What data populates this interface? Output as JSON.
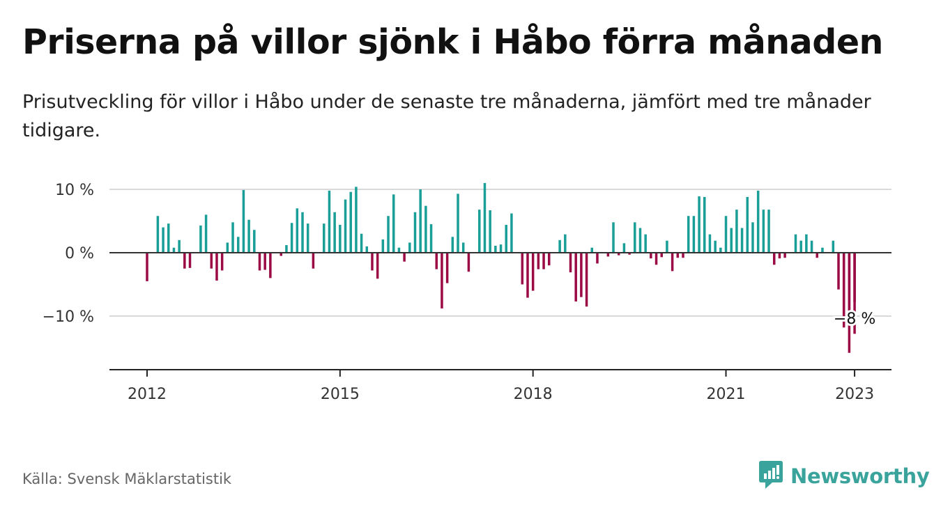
{
  "title": "Priserna på villor sjönk i Håbo förra månaden",
  "subtitle": "Prisutveckling för villor i Håbo under de senaste tre månaderna, jämfört med tre månader tidigare.",
  "source": "Källa: Svensk Mäklarstatistik",
  "brand": {
    "name": "Newsworthy",
    "icon": "newsworthy-logo-icon",
    "color": "#3aa39b"
  },
  "chart_data": {
    "type": "bar",
    "title": "Priserna på villor sjönk i Håbo förra månaden",
    "ylim": [
      -18.5,
      10.5
    ],
    "yticks": [
      10,
      0,
      -10
    ],
    "ytick_labels": [
      "10 %",
      "0 %",
      "−10 %"
    ],
    "xticks": [
      "2012-01",
      "2015-01",
      "2018-01",
      "2021-01",
      "2023-01"
    ],
    "xtick_labels": [
      "2012",
      "2015",
      "2018",
      "2021",
      "2023"
    ],
    "grid": true,
    "colors": {
      "positive": "#1a9e98",
      "negative": "#9b0a45"
    },
    "annotation": {
      "date": "2023-01",
      "text": "−8 %"
    },
    "series": [
      {
        "values": [
          [
            "2012-01",
            -4.5
          ],
          [
            "2012-03",
            5.8
          ],
          [
            "2012-04",
            4.0
          ],
          [
            "2012-05",
            4.6
          ],
          [
            "2012-06",
            0.8
          ],
          [
            "2012-07",
            2.0
          ],
          [
            "2012-08",
            -2.5
          ],
          [
            "2012-09",
            -2.4
          ],
          [
            "2012-11",
            4.3
          ],
          [
            "2012-12",
            6.0
          ],
          [
            "2013-01",
            -2.5
          ],
          [
            "2013-02",
            -4.4
          ],
          [
            "2013-03",
            -2.8
          ],
          [
            "2013-04",
            1.6
          ],
          [
            "2013-05",
            4.8
          ],
          [
            "2013-06",
            2.5
          ],
          [
            "2013-07",
            9.9
          ],
          [
            "2013-08",
            5.2
          ],
          [
            "2013-09",
            3.6
          ],
          [
            "2013-10",
            -2.8
          ],
          [
            "2013-11",
            -2.7
          ],
          [
            "2013-12",
            -4.0
          ],
          [
            "2014-02",
            -0.5
          ],
          [
            "2014-03",
            1.2
          ],
          [
            "2014-04",
            4.7
          ],
          [
            "2014-05",
            7.0
          ],
          [
            "2014-06",
            6.4
          ],
          [
            "2014-07",
            4.6
          ],
          [
            "2014-08",
            -2.5
          ],
          [
            "2014-10",
            4.6
          ],
          [
            "2014-11",
            9.8
          ],
          [
            "2014-12",
            6.4
          ],
          [
            "2015-01",
            4.4
          ],
          [
            "2015-02",
            8.4
          ],
          [
            "2015-03",
            9.6
          ],
          [
            "2015-04",
            10.4
          ],
          [
            "2015-05",
            3.0
          ],
          [
            "2015-06",
            1.0
          ],
          [
            "2015-07",
            -2.8
          ],
          [
            "2015-08",
            -4.1
          ],
          [
            "2015-09",
            2.1
          ],
          [
            "2015-10",
            5.8
          ],
          [
            "2015-11",
            9.2
          ],
          [
            "2015-12",
            0.8
          ],
          [
            "2016-01",
            -1.4
          ],
          [
            "2016-02",
            1.6
          ],
          [
            "2016-03",
            6.4
          ],
          [
            "2016-04",
            10.0
          ],
          [
            "2016-05",
            7.4
          ],
          [
            "2016-06",
            4.5
          ],
          [
            "2016-07",
            -2.6
          ],
          [
            "2016-08",
            -8.8
          ],
          [
            "2016-09",
            -4.8
          ],
          [
            "2016-10",
            2.5
          ],
          [
            "2016-11",
            9.3
          ],
          [
            "2016-12",
            1.6
          ],
          [
            "2017-01",
            -3.0
          ],
          [
            "2017-03",
            6.8
          ],
          [
            "2017-04",
            11.0
          ],
          [
            "2017-05",
            6.7
          ],
          [
            "2017-06",
            1.1
          ],
          [
            "2017-07",
            1.3
          ],
          [
            "2017-08",
            4.4
          ],
          [
            "2017-09",
            6.2
          ],
          [
            "2017-11",
            -5.0
          ],
          [
            "2017-12",
            -7.1
          ],
          [
            "2018-01",
            -6.0
          ],
          [
            "2018-02",
            -2.6
          ],
          [
            "2018-03",
            -2.6
          ],
          [
            "2018-04",
            -2.0
          ],
          [
            "2018-06",
            2.0
          ],
          [
            "2018-07",
            2.9
          ],
          [
            "2018-08",
            -3.1
          ],
          [
            "2018-09",
            -7.7
          ],
          [
            "2018-10",
            -7.0
          ],
          [
            "2018-11",
            -8.5
          ],
          [
            "2018-12",
            0.8
          ],
          [
            "2019-01",
            -1.7
          ],
          [
            "2019-03",
            -0.6
          ],
          [
            "2019-04",
            4.8
          ],
          [
            "2019-05",
            -0.4
          ],
          [
            "2019-06",
            1.5
          ],
          [
            "2019-07",
            -0.3
          ],
          [
            "2019-08",
            4.8
          ],
          [
            "2019-09",
            3.9
          ],
          [
            "2019-10",
            2.9
          ],
          [
            "2019-11",
            -0.9
          ],
          [
            "2019-12",
            -1.9
          ],
          [
            "2020-01",
            -0.7
          ],
          [
            "2020-02",
            1.9
          ],
          [
            "2020-03",
            -2.9
          ],
          [
            "2020-04",
            -0.8
          ],
          [
            "2020-05",
            -0.8
          ],
          [
            "2020-06",
            5.8
          ],
          [
            "2020-07",
            5.8
          ],
          [
            "2020-08",
            8.9
          ],
          [
            "2020-09",
            8.8
          ],
          [
            "2020-10",
            2.9
          ],
          [
            "2020-11",
            1.9
          ],
          [
            "2020-12",
            0.8
          ],
          [
            "2021-01",
            5.8
          ],
          [
            "2021-02",
            3.9
          ],
          [
            "2021-03",
            6.8
          ],
          [
            "2021-04",
            3.9
          ],
          [
            "2021-05",
            8.8
          ],
          [
            "2021-06",
            4.8
          ],
          [
            "2021-07",
            9.8
          ],
          [
            "2021-08",
            6.8
          ],
          [
            "2021-09",
            6.8
          ],
          [
            "2021-10",
            -1.9
          ],
          [
            "2021-11",
            -0.9
          ],
          [
            "2021-12",
            -0.8
          ],
          [
            "2022-02",
            2.9
          ],
          [
            "2022-03",
            1.9
          ],
          [
            "2022-04",
            2.9
          ],
          [
            "2022-05",
            1.9
          ],
          [
            "2022-06",
            -0.8
          ],
          [
            "2022-07",
            0.8
          ],
          [
            "2022-09",
            1.9
          ],
          [
            "2022-10",
            -5.8
          ],
          [
            "2022-11",
            -11.8
          ],
          [
            "2022-11",
            -9.7
          ],
          [
            "2022-12",
            -15.8
          ],
          [
            "2022-12",
            -9.7
          ],
          [
            "2023-01",
            -12.8
          ],
          [
            "2023-01",
            -7.8
          ]
        ]
      }
    ]
  }
}
